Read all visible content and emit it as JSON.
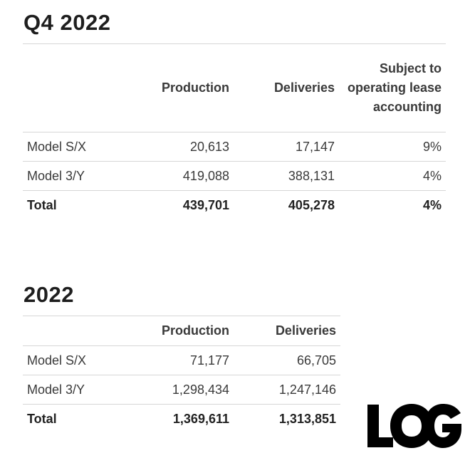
{
  "q4": {
    "title": "Q4 2022",
    "headers": {
      "production": "Production",
      "deliveries": "Deliveries",
      "lease": "Subject to operating lease accounting"
    },
    "rows": [
      {
        "model": "Model S/X",
        "production": "20,613",
        "deliveries": "17,147",
        "lease": "9%"
      },
      {
        "model": "Model 3/Y",
        "production": "419,088",
        "deliveries": "388,131",
        "lease": "4%"
      }
    ],
    "total": {
      "label": "Total",
      "production": "439,701",
      "deliveries": "405,278",
      "lease": "4%"
    }
  },
  "year": {
    "title": "2022",
    "headers": {
      "production": "Production",
      "deliveries": "Deliveries"
    },
    "rows": [
      {
        "model": "Model S/X",
        "production": "71,177",
        "deliveries": "66,705"
      },
      {
        "model": "Model 3/Y",
        "production": "1,298,434",
        "deliveries": "1,247,146"
      }
    ],
    "total": {
      "label": "Total",
      "production": "1,369,611",
      "deliveries": "1,313,851"
    }
  },
  "watermark": {
    "text": "LOG",
    "color": "#000000"
  }
}
